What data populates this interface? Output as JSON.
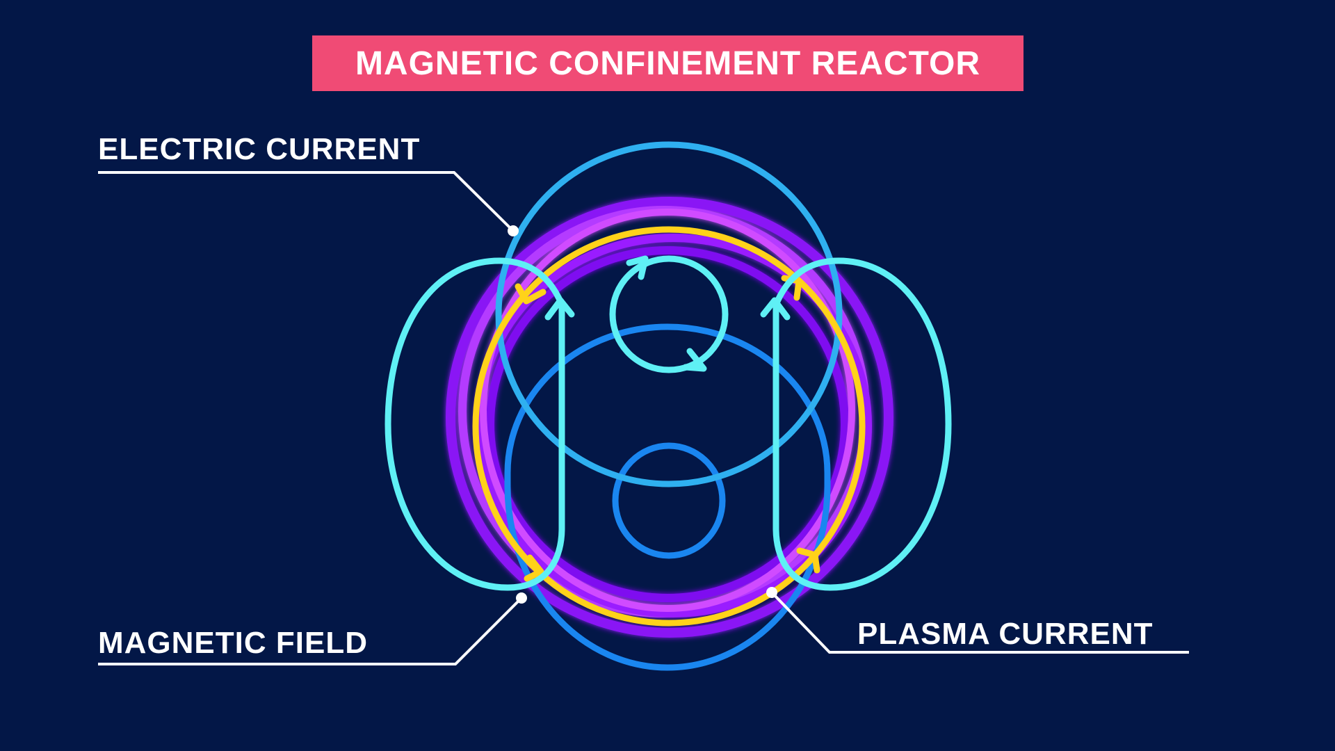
{
  "title": "MAGNETIC CONFINEMENT REACTOR",
  "labels": {
    "electric_current": "ELECTRIC CURRENT",
    "magnetic_field": "MAGNETIC FIELD",
    "plasma_current": "PLASMA CURRENT"
  },
  "colors": {
    "background": "#031747",
    "banner": "#f04b75",
    "electric_current": "#2fb0f0",
    "magnetic_field": "#5ff0f5",
    "plasma_current": "#ffd21a",
    "plasma_ring_violet": "#9a1cff",
    "plasma_ring_magenta": "#d04bff",
    "coil_blue": "#1a86f0",
    "leader_line": "#ffffff"
  }
}
